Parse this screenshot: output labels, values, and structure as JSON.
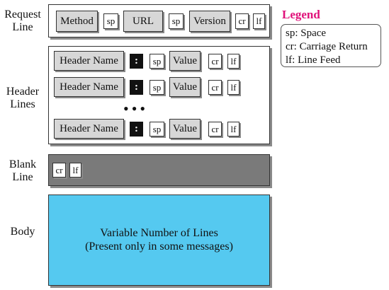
{
  "sections": {
    "request_line": "Request\nLine",
    "header_lines": "Header\nLines",
    "blank_line": "Blank\nLine",
    "body": "Body"
  },
  "request_line": {
    "method": "Method",
    "sp1": "sp",
    "url": "URL",
    "sp2": "sp",
    "version": "Version",
    "cr": "cr",
    "lf": "lf"
  },
  "header_row": {
    "name": "Header Name",
    "colon": ":",
    "sp": "sp",
    "value": "Value",
    "cr": "cr",
    "lf": "lf"
  },
  "ellipsis": "•••",
  "blank_line": {
    "cr": "cr",
    "lf": "lf"
  },
  "body": {
    "line1": "Variable Number of Lines",
    "line2": "(Present only in some messages)"
  },
  "legend": {
    "title": "Legend",
    "items": [
      "sp: Space",
      "cr: Carriage Return",
      "lf: Line Feed"
    ]
  },
  "colors": {
    "legend_title": "#e0117a",
    "field_gray": "#d7d7d7",
    "blank_line_fill": "#7a7a7a",
    "body_fill": "#55c9f0"
  }
}
